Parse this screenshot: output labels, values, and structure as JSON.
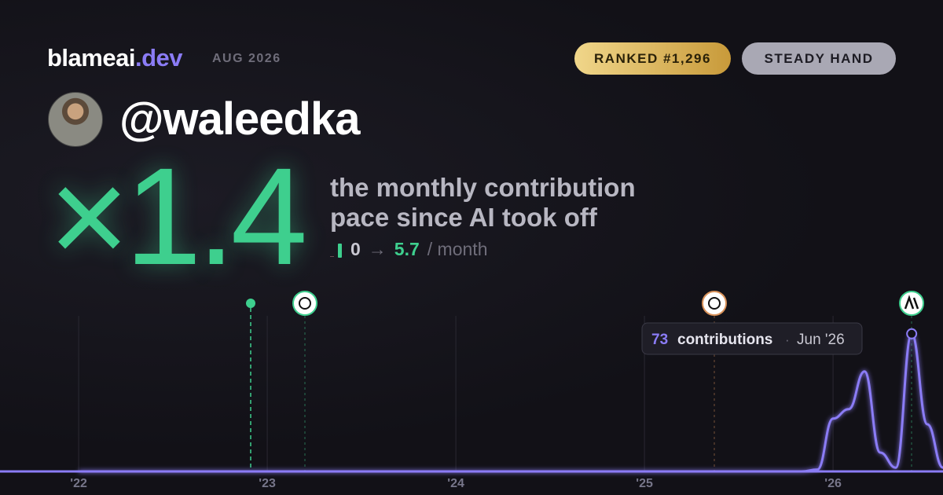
{
  "header": {
    "brand": "blameai",
    "brand_tld": ".dev",
    "period": "AUG 2026",
    "rank_badge": "RANKED #1,296",
    "style_badge": "STEADY HAND"
  },
  "profile": {
    "handle": "@waleedka"
  },
  "headline": {
    "multiplier": "×1.4",
    "description_line1": "the monthly contribution",
    "description_line2": "pace since AI took off",
    "from": "0",
    "arrow": "→",
    "to": "5.7",
    "unit": "/ month"
  },
  "chart_data": {
    "type": "line",
    "x": [
      2022,
      2025.75,
      2025.833,
      2025.917,
      2026,
      2026.083,
      2026.167,
      2026.25,
      2026.333,
      2026.417,
      2026.5,
      2026.583
    ],
    "series": [
      {
        "color": "#8b7cf6",
        "values": [
          0,
          0,
          0,
          1,
          28,
          33,
          53,
          10,
          2,
          73,
          25,
          2
        ]
      }
    ],
    "xlim": [
      2021.583,
      2026.583
    ],
    "xticks": [
      {
        "value": 2022,
        "label": "'22"
      },
      {
        "value": 2023,
        "label": "'23"
      },
      {
        "value": 2024,
        "label": "'24"
      },
      {
        "value": 2025,
        "label": "'25"
      },
      {
        "value": 2026,
        "label": "'26"
      }
    ],
    "ylim": [
      0,
      80
    ],
    "tooltip": {
      "value": 73,
      "label": "contributions",
      "separator": "·",
      "date": "Jun '26"
    }
  }
}
